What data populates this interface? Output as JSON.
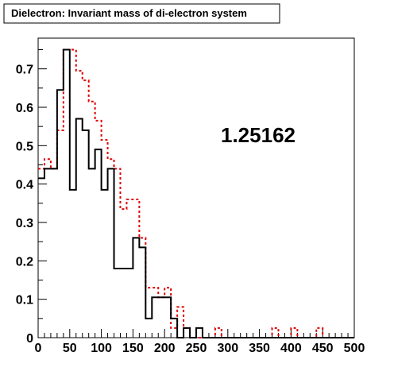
{
  "chart_data": {
    "type": "histogram",
    "title": "Dielectron: Invariant mass of di-electron system",
    "annotation": "1.25162",
    "xlim": [
      0,
      500
    ],
    "ylim": [
      0,
      0.78
    ],
    "bin_width": 10,
    "x_ticks": [
      0,
      50,
      100,
      150,
      200,
      250,
      300,
      350,
      400,
      450,
      500
    ],
    "y_ticks": [
      0,
      0.1,
      0.2,
      0.3,
      0.4,
      0.5,
      0.6,
      0.7
    ],
    "x_tick_labels": [
      "0",
      "50",
      "100",
      "150",
      "200",
      "250",
      "300",
      "350",
      "400",
      "450",
      "500"
    ],
    "y_tick_labels": [
      "0",
      "0.1",
      "0.2",
      "0.3",
      "0.4",
      "0.5",
      "0.6",
      "0.7"
    ],
    "series": [
      {
        "color": "#000000",
        "style": "solid",
        "values": [
          0.415,
          0.44,
          0.44,
          0.645,
          0.75,
          0.385,
          0.57,
          0.54,
          0.44,
          0.49,
          0.385,
          0.44,
          0.18,
          0.18,
          0.18,
          0.26,
          0.235,
          0.05,
          0.105,
          0.105,
          0.105,
          0.05,
          0.0,
          0.025,
          0.0,
          0.025,
          0,
          0,
          0,
          0,
          0,
          0,
          0,
          0,
          0,
          0,
          0,
          0,
          0,
          0,
          0,
          0,
          0,
          0,
          0,
          0,
          0,
          0,
          0,
          0
        ]
      },
      {
        "color": "#e00000",
        "style": "dashed",
        "values": [
          0.44,
          0.465,
          0.44,
          0.54,
          0.75,
          0.75,
          0.695,
          0.67,
          0.615,
          0.565,
          0.515,
          0.465,
          0.44,
          0.335,
          0.36,
          0.36,
          0.26,
          0.13,
          0.13,
          0.105,
          0.13,
          0.025,
          0.08,
          0.025,
          0,
          0,
          0,
          0,
          0.025,
          0,
          0,
          0,
          0,
          0,
          0,
          0,
          0,
          0.025,
          0,
          0,
          0.025,
          0,
          0,
          0,
          0.025,
          0,
          0,
          0,
          0,
          0
        ]
      }
    ]
  }
}
